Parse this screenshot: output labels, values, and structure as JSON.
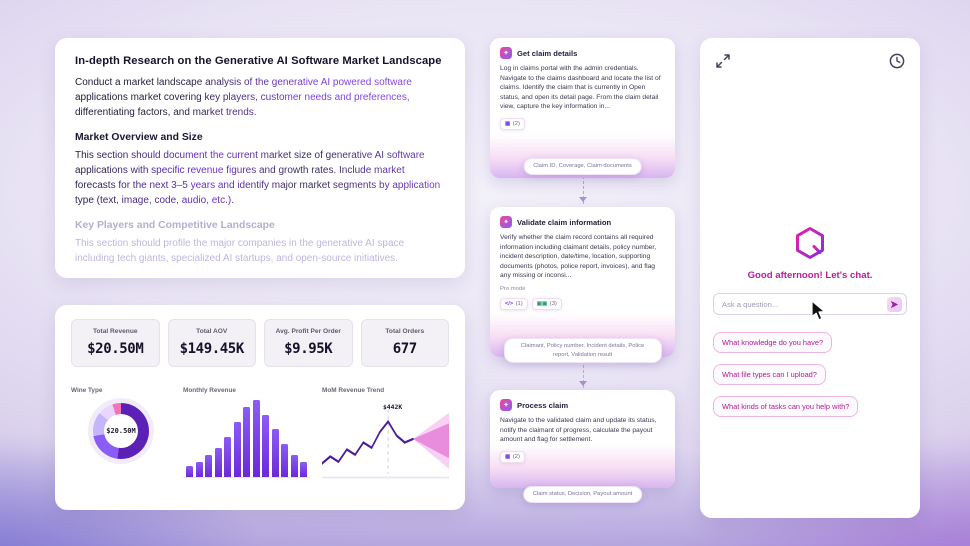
{
  "document": {
    "title": "In-depth Research on the Generative AI Software Market Landscape",
    "intro": "Conduct a market landscape analysis of the generative AI powered software applications market covering key players, customer needs and preferences, differentiating factors, and market trends.",
    "sections": [
      {
        "heading": "Market Overview and Size",
        "body": "This section should document the current market size of generative AI software applications with specific revenue figures and growth rates. Include market forecasts for the next 3–5 years and identify major market segments by application type (text, image, code, audio, etc.)."
      },
      {
        "heading": "Key Players and Competitive Landscape",
        "body": "This section should profile the major companies in the generative AI space including tech giants, specialized AI startups, and open-source initiatives."
      }
    ]
  },
  "dashboard": {
    "kpis": [
      {
        "label": "Total Revenue",
        "value": "$20.50M"
      },
      {
        "label": "Total AOV",
        "value": "$149.45K"
      },
      {
        "label": "Avg. Profit Per Order",
        "value": "$9.95K"
      },
      {
        "label": "Total Orders",
        "value": "677"
      }
    ]
  },
  "chart_data": [
    {
      "type": "pie",
      "title": "Wine Type",
      "center_label": "$20.50M",
      "values": [
        52,
        20,
        14,
        9,
        5
      ],
      "colors": [
        "#5b21b6",
        "#8b5cf6",
        "#c4b5fd",
        "#e9d5ff",
        "#f472b6"
      ]
    },
    {
      "type": "bar",
      "title": "Monthly Revenue",
      "values": [
        6,
        8,
        12,
        16,
        22,
        30,
        38,
        42,
        34,
        26,
        18,
        12,
        8
      ],
      "color": "#7c3aed"
    },
    {
      "type": "line",
      "title": "MoM Revenue Trend",
      "annotation": "$442K",
      "points": [
        38,
        34,
        37,
        30,
        33,
        26,
        29,
        20,
        14,
        22,
        26,
        24
      ],
      "forecast_cone": true,
      "color": "#4c1d95"
    }
  ],
  "workflow": {
    "steps": [
      {
        "title": "Get claim details",
        "body": "Log in claims portal with the admin credentials. Navigate to the claims dashboard and locate the list of claims. Identify the claim that is currently in Open status, and open its detail page. From the claim detail view, capture the key information in...",
        "badges": [
          {
            "glyph": "▦",
            "count": "(2)"
          }
        ],
        "output": "Claim ID, Coverage, Claim documents"
      },
      {
        "title": "Validate claim information",
        "body": "Verify whether the claim record contains all required information including claimant details, policy number, incident description, date/time, location, supporting documents (photos, police report, invoices), and flag any missing or inconsi...",
        "mode_label": "Pro mode",
        "badges": [
          {
            "glyph": "</>",
            "count": "(1)"
          },
          {
            "glyph": "▣▣",
            "count": "(3)"
          }
        ],
        "output": "Claimant, Policy number, Incident details, Police report, Validation result"
      },
      {
        "title": "Process claim",
        "body": "Navigate to the validated claim and update its status, notify the claimant of progress, calculate the payout amount and flag for settlement.",
        "badges": [
          {
            "glyph": "▦",
            "count": "(2)"
          }
        ],
        "output": "Claim status, Decision, Payout amount"
      }
    ]
  },
  "chat": {
    "greeting": "Good afternoon! Let's chat.",
    "input_placeholder": "Ask a question...",
    "suggestions": [
      "What knowledge do you have?",
      "What file types can I upload?",
      "What kinds of tasks can you help with?"
    ]
  },
  "colors": {
    "accent_magenta": "#b51e9b",
    "accent_purple": "#7c3aed"
  }
}
